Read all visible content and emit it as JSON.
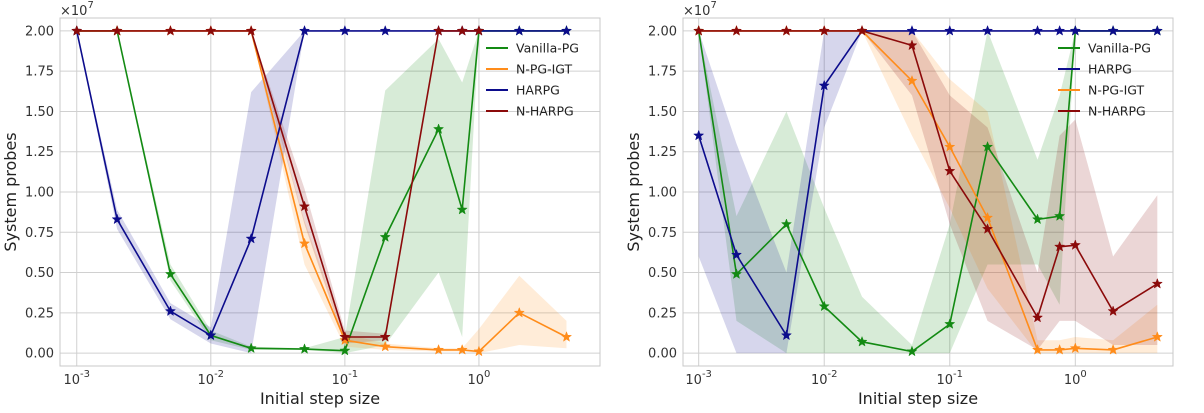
{
  "chart_data": [
    {
      "type": "line",
      "title": "",
      "xlabel": "Initial step size",
      "ylabel": "System probes",
      "y_multiplier": "×10^7",
      "xscale": "log",
      "xlim": [
        0.00075,
        8
      ],
      "ylim": [
        -0.08,
        2.08
      ],
      "xticks": [
        0.001,
        0.01,
        0.1,
        1
      ],
      "xtick_labels": [
        "10^-3",
        "10^-2",
        "10^-1",
        "10^0"
      ],
      "yticks": [
        0,
        0.25,
        0.5,
        0.75,
        1.0,
        1.25,
        1.5,
        1.75,
        2.0
      ],
      "ytick_labels": [
        "0.00",
        "0.25",
        "0.50",
        "0.75",
        "1.00",
        "1.25",
        "1.50",
        "1.75",
        "2.00"
      ],
      "grid": true,
      "legend_position": "upper-right",
      "series": [
        {
          "name": "Vanilla-PG",
          "color": "#138a13",
          "x": [
            0.001,
            0.002,
            0.005,
            0.01,
            0.02,
            0.05,
            0.1,
            0.2,
            0.5,
            0.75,
            1,
            2,
            4.5
          ],
          "y": [
            2.0,
            2.0,
            0.49,
            0.11,
            0.03,
            0.025,
            0.015,
            0.72,
            1.39,
            0.89,
            2.0,
            2.0,
            2.0
          ],
          "lo": [
            2.0,
            2.0,
            0.45,
            0.08,
            0.02,
            0.02,
            0.0,
            0.05,
            0.5,
            0.1,
            2.0,
            2.0,
            2.0
          ],
          "hi": [
            2.0,
            2.0,
            0.55,
            0.14,
            0.04,
            0.03,
            0.1,
            1.63,
            1.95,
            1.68,
            2.0,
            2.0,
            2.0
          ]
        },
        {
          "name": "N-PG-IGT",
          "color": "#ff8c1a",
          "x": [
            0.001,
            0.002,
            0.005,
            0.01,
            0.02,
            0.05,
            0.1,
            0.2,
            0.5,
            0.75,
            1,
            2,
            4.5
          ],
          "y": [
            2.0,
            2.0,
            2.0,
            2.0,
            2.0,
            0.68,
            0.08,
            0.04,
            0.02,
            0.02,
            0.01,
            0.25,
            0.1
          ],
          "lo": [
            2.0,
            2.0,
            2.0,
            2.0,
            2.0,
            0.55,
            0.04,
            0.02,
            0.01,
            0.01,
            0.0,
            0.05,
            0.03
          ],
          "hi": [
            2.0,
            2.0,
            2.0,
            2.0,
            2.0,
            0.82,
            0.12,
            0.06,
            0.03,
            0.03,
            0.15,
            0.48,
            0.2
          ]
        },
        {
          "name": "HARPG",
          "color": "#0c0c8c",
          "x": [
            0.001,
            0.002,
            0.005,
            0.01,
            0.02,
            0.05,
            0.1,
            0.2,
            0.5,
            0.75,
            1,
            2,
            4.5
          ],
          "y": [
            2.0,
            0.83,
            0.26,
            0.11,
            0.71,
            2.0,
            2.0,
            2.0,
            2.0,
            2.0,
            2.0,
            2.0,
            2.0
          ],
          "lo": [
            2.0,
            0.77,
            0.21,
            0.06,
            0.0,
            2.0,
            2.0,
            2.0,
            2.0,
            2.0,
            2.0,
            2.0,
            2.0
          ],
          "hi": [
            2.0,
            0.89,
            0.31,
            0.16,
            1.62,
            2.0,
            2.0,
            2.0,
            2.0,
            2.0,
            2.0,
            2.0,
            2.0
          ]
        },
        {
          "name": "N-HARPG",
          "color": "#8b0a0a",
          "x": [
            0.001,
            0.002,
            0.005,
            0.01,
            0.02,
            0.05,
            0.1,
            0.2,
            0.5,
            0.75,
            1
          ],
          "y": [
            2.0,
            2.0,
            2.0,
            2.0,
            2.0,
            0.91,
            0.1,
            0.1,
            2.0,
            2.0,
            2.0
          ],
          "lo": [
            2.0,
            2.0,
            2.0,
            2.0,
            2.0,
            0.8,
            0.06,
            0.08,
            2.0,
            2.0,
            2.0
          ],
          "hi": [
            2.0,
            2.0,
            2.0,
            2.0,
            2.0,
            1.02,
            0.14,
            0.12,
            2.0,
            2.0,
            2.0
          ]
        }
      ]
    },
    {
      "type": "line",
      "title": "",
      "xlabel": "Initial step size",
      "ylabel": "System probes",
      "y_multiplier": "×10^7",
      "xscale": "log",
      "xlim": [
        0.00075,
        6
      ],
      "ylim": [
        -0.08,
        2.08
      ],
      "xticks": [
        0.001,
        0.01,
        0.1,
        1
      ],
      "xtick_labels": [
        "10^-3",
        "10^-2",
        "10^-1",
        "10^0"
      ],
      "yticks": [
        0,
        0.25,
        0.5,
        0.75,
        1.0,
        1.25,
        1.5,
        1.75,
        2.0
      ],
      "ytick_labels": [
        "0.00",
        "0.25",
        "0.50",
        "0.75",
        "1.00",
        "1.25",
        "1.50",
        "1.75",
        "2.00"
      ],
      "grid": true,
      "legend_position": "upper-right",
      "series": [
        {
          "name": "Vanilla-PG",
          "color": "#138a13",
          "x": [
            0.001,
            0.002,
            0.005,
            0.01,
            0.02,
            0.05,
            0.1,
            0.2,
            0.5,
            0.75,
            1,
            2,
            4.5
          ],
          "y": [
            2.0,
            0.49,
            0.8,
            0.29,
            0.07,
            0.01,
            0.18,
            1.28,
            0.83,
            0.85,
            2.0,
            2.0,
            2.0
          ],
          "lo": [
            2.0,
            0.2,
            0.0,
            0.0,
            0.0,
            0.0,
            0.0,
            0.55,
            0.55,
            0.3,
            2.0,
            2.0,
            2.0
          ],
          "hi": [
            2.0,
            0.85,
            1.5,
            0.9,
            0.35,
            0.05,
            0.8,
            2.0,
            1.2,
            1.6,
            2.0,
            2.0,
            2.0
          ]
        },
        {
          "name": "HARPG",
          "color": "#0c0c8c",
          "x": [
            0.001,
            0.002,
            0.005,
            0.01,
            0.02,
            0.05,
            0.1,
            0.2,
            0.5,
            0.75,
            1,
            2,
            4.5
          ],
          "y": [
            1.35,
            0.61,
            0.11,
            1.66,
            2.0,
            2.0,
            2.0,
            2.0,
            2.0,
            2.0,
            2.0,
            2.0,
            2.0
          ],
          "lo": [
            0.6,
            0.0,
            0.0,
            1.4,
            2.0,
            2.0,
            2.0,
            2.0,
            2.0,
            2.0,
            2.0,
            2.0,
            2.0
          ],
          "hi": [
            2.0,
            1.3,
            0.5,
            2.0,
            2.0,
            2.0,
            2.0,
            2.0,
            2.0,
            2.0,
            2.0,
            2.0,
            2.0
          ]
        },
        {
          "name": "N-PG-IGT",
          "color": "#ff8c1a",
          "x": [
            0.001,
            0.002,
            0.005,
            0.01,
            0.02,
            0.05,
            0.1,
            0.2,
            0.5,
            0.75,
            1,
            2,
            4.5
          ],
          "y": [
            2.0,
            2.0,
            2.0,
            2.0,
            2.0,
            1.69,
            1.28,
            0.84,
            0.02,
            0.02,
            0.03,
            0.02,
            0.1
          ],
          "lo": [
            2.0,
            2.0,
            2.0,
            2.0,
            2.0,
            1.35,
            0.9,
            0.4,
            0.0,
            0.0,
            0.0,
            0.0,
            0.0
          ],
          "hi": [
            2.0,
            2.0,
            2.0,
            2.0,
            2.0,
            2.0,
            1.7,
            1.5,
            0.08,
            0.08,
            0.1,
            0.08,
            0.3
          ]
        },
        {
          "name": "N-HARPG",
          "color": "#8b0a0a",
          "x": [
            0.001,
            0.002,
            0.005,
            0.01,
            0.02,
            0.05,
            0.1,
            0.2,
            0.5,
            0.75,
            1,
            2,
            4.5
          ],
          "y": [
            2.0,
            2.0,
            2.0,
            2.0,
            2.0,
            1.91,
            1.13,
            0.77,
            0.22,
            0.66,
            0.67,
            0.26,
            0.43
          ],
          "lo": [
            2.0,
            2.0,
            2.0,
            2.0,
            2.0,
            1.6,
            0.8,
            0.2,
            0.02,
            0.2,
            0.2,
            0.05,
            0.05
          ],
          "hi": [
            2.0,
            2.0,
            2.0,
            2.0,
            2.0,
            2.0,
            1.6,
            1.4,
            0.5,
            1.35,
            1.45,
            0.6,
            0.98
          ]
        }
      ]
    }
  ]
}
